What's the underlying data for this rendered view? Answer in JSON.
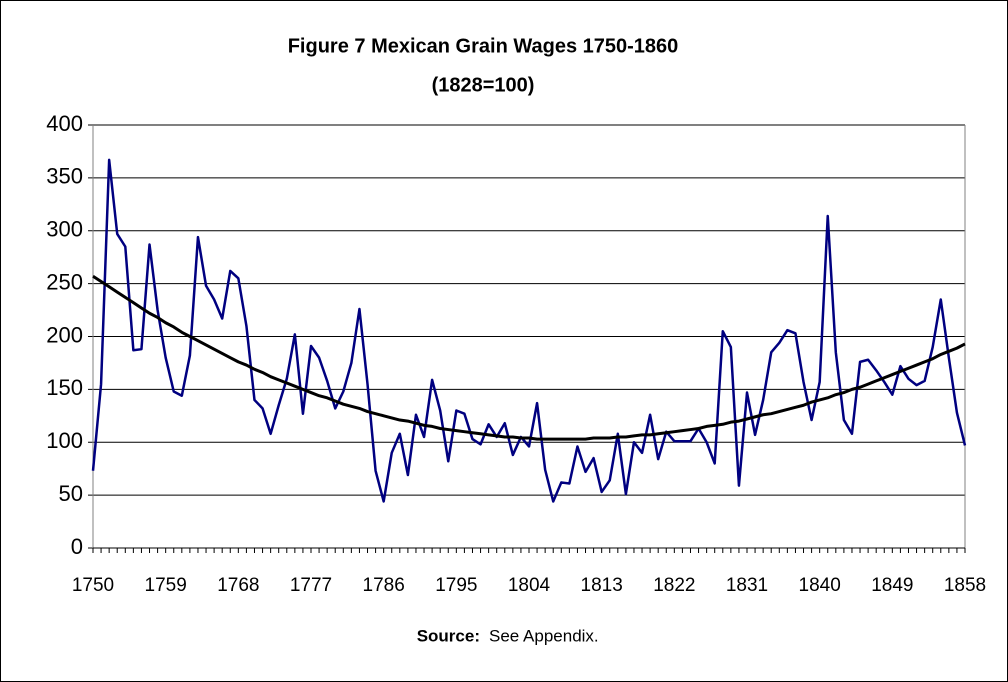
{
  "chart_data": {
    "type": "line",
    "title": "Figure 7 Mexican Grain Wages 1750-1860",
    "subtitle": "(1828=100)",
    "source_label": "Source:",
    "source_text": "See Appendix.",
    "categories": [
      1750,
      null,
      null,
      null,
      null,
      null,
      null,
      null,
      null,
      1759,
      null,
      null,
      null,
      null,
      null,
      null,
      null,
      null,
      1768,
      null,
      null,
      null,
      null,
      null,
      null,
      null,
      null,
      1777,
      null,
      null,
      null,
      null,
      null,
      null,
      null,
      null,
      1786,
      null,
      null,
      null,
      null,
      null,
      null,
      null,
      null,
      1795,
      null,
      null,
      null,
      null,
      null,
      null,
      null,
      null,
      1804,
      null,
      null,
      null,
      null,
      null,
      null,
      null,
      null,
      1813,
      null,
      null,
      null,
      null,
      null,
      null,
      null,
      null,
      1822,
      null,
      null,
      null,
      null,
      null,
      null,
      null,
      null,
      1831,
      null,
      null,
      null,
      null,
      null,
      null,
      null,
      null,
      1840,
      null,
      null,
      null,
      null,
      null,
      null,
      null,
      null,
      1849,
      null,
      null,
      null,
      null,
      null,
      null,
      null,
      null,
      1858
    ],
    "series": [
      {
        "color": "#000080",
        "values": [
          73,
          155,
          367,
          297,
          285,
          187,
          188,
          287,
          225,
          180,
          148,
          144,
          182,
          294,
          248,
          235,
          217,
          262,
          255,
          210,
          140,
          132,
          108,
          135,
          160,
          202,
          127,
          191,
          180,
          158,
          132,
          148,
          175,
          226,
          155,
          73,
          44,
          90,
          108,
          69,
          126,
          105,
          159,
          130,
          82,
          130,
          127,
          103,
          98,
          117,
          105,
          118,
          88,
          105,
          96,
          137,
          74,
          44,
          62,
          61,
          96,
          72,
          85,
          53,
          64,
          108,
          51,
          100,
          90,
          126,
          84,
          110,
          101,
          101,
          101,
          113,
          100,
          80,
          205,
          190,
          59,
          147,
          107,
          140,
          185,
          194,
          206,
          203,
          157,
          121,
          157,
          314,
          185,
          121,
          108,
          176,
          178,
          168,
          157,
          145,
          172,
          160,
          154,
          158,
          190,
          235,
          180,
          128,
          97
        ]
      },
      {
        "color": "#000000",
        "values": [
          257,
          252,
          247,
          242,
          237,
          232,
          227,
          222,
          218,
          213,
          209,
          204,
          200,
          196,
          192,
          188,
          184,
          180,
          176,
          173,
          169,
          166,
          162,
          159,
          156,
          153,
          150,
          147,
          144,
          142,
          139,
          136,
          134,
          132,
          129,
          127,
          125,
          123,
          121,
          120,
          118,
          116,
          115,
          113,
          112,
          111,
          110,
          109,
          108,
          107,
          106,
          105,
          105,
          104,
          104,
          103,
          103,
          103,
          103,
          103,
          103,
          103,
          104,
          104,
          104,
          105,
          105,
          106,
          107,
          107,
          108,
          109,
          110,
          111,
          112,
          113,
          115,
          116,
          117,
          119,
          120,
          122,
          124,
          126,
          127,
          129,
          131,
          133,
          135,
          138,
          140,
          142,
          145,
          147,
          150,
          152,
          155,
          158,
          161,
          164,
          167,
          170,
          173,
          176,
          179,
          183,
          186,
          189,
          193
        ]
      }
    ],
    "ylim": [
      0,
      400
    ],
    "yticks": [
      0,
      50,
      100,
      150,
      200,
      250,
      300,
      350,
      400
    ],
    "grid": true
  }
}
